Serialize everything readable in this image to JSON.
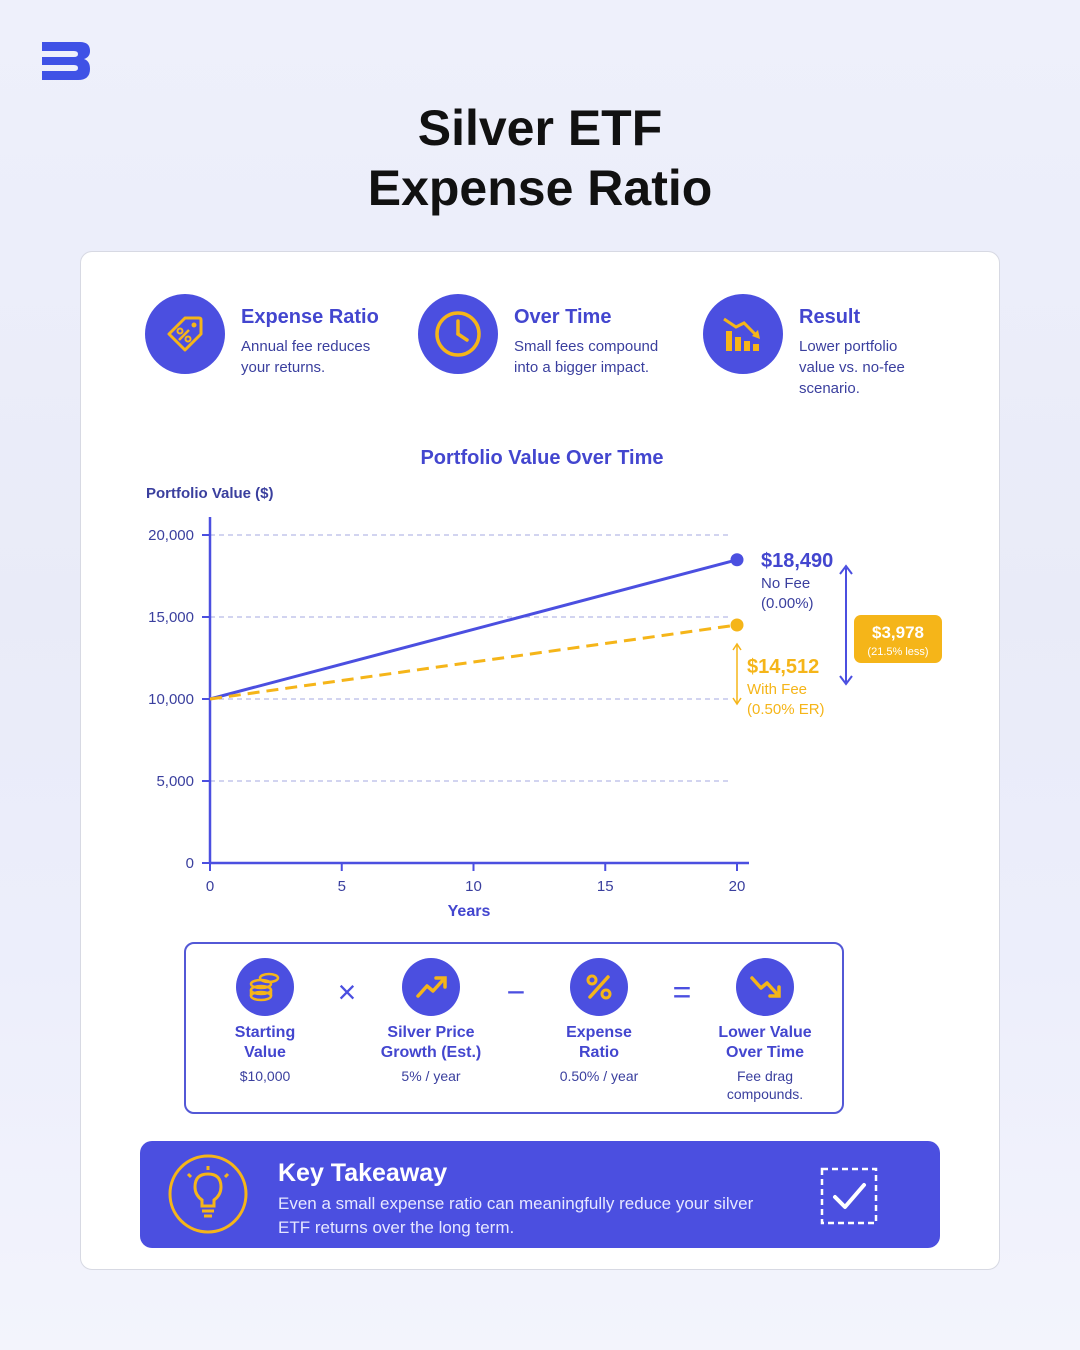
{
  "page": {
    "title_line1": "Silver ETF",
    "title_line2": "Expense Ratio"
  },
  "features": [
    {
      "icon": "price-tag-percent-icon",
      "title": "Expense Ratio",
      "desc": "Annual fee reduces your returns."
    },
    {
      "icon": "clock-icon",
      "title": "Over Time",
      "desc": "Small fees compound into a bigger impact."
    },
    {
      "icon": "declining-bars-icon",
      "title": "Result",
      "desc": "Lower portfolio value vs. no-fee scenario."
    }
  ],
  "colors": {
    "accent": "#4b4fe0",
    "fee": "#f5b519",
    "text_dark": "#3a3f9e"
  },
  "chart_data": {
    "type": "line",
    "title": "Portfolio Value Over Time",
    "ylabel": "Portfolio Value ($)",
    "xlabel": "Years",
    "xlim": [
      0,
      20
    ],
    "ylim": [
      0,
      20000
    ],
    "x_ticks": [
      0,
      5,
      10,
      15,
      20
    ],
    "y_ticks": [
      0,
      5000,
      10000,
      15000,
      20000
    ],
    "y_tick_labels": [
      "0",
      "5,000",
      "10,000",
      "15,000",
      "20,000"
    ],
    "grid": "horizontal dashed",
    "series": [
      {
        "name": "No Fee",
        "style": "solid",
        "color": "#4b4fe0",
        "x": [
          0,
          20
        ],
        "y": [
          10000,
          18490
        ]
      },
      {
        "name": "With Fee",
        "style": "dashed",
        "color": "#f5b519",
        "x": [
          0,
          20
        ],
        "y": [
          10000,
          14512
        ]
      }
    ],
    "annotations": {
      "no_fee_value": "$18,490",
      "no_fee_label": "No Fee",
      "no_fee_rate": "(0.00%)",
      "fee_value": "$14,512",
      "fee_label": "With Fee",
      "fee_rate": "(0.50% ER)",
      "diff_value": "$3,978",
      "diff_pct": "(21.5% less)"
    }
  },
  "formula": {
    "items": [
      {
        "icon": "coin-stack-icon",
        "line1": "Starting",
        "line2": "Value",
        "value": "$10,000"
      },
      {
        "icon": "trend-up-icon",
        "line1": "Silver Price",
        "line2": "Growth (Est.)",
        "value": "5% / year"
      },
      {
        "icon": "percent-icon",
        "line1": "Expense",
        "line2": "Ratio",
        "value": "0.50% / year"
      },
      {
        "icon": "trend-down-icon",
        "line1": "Lower Value",
        "line2": "Over Time",
        "value": "Fee drag compounds."
      }
    ],
    "operators": [
      "×",
      "−",
      "="
    ]
  },
  "takeaway": {
    "title": "Key Takeaway",
    "text": "Even a small expense ratio can meaningfully reduce your silver ETF returns over the long term."
  }
}
